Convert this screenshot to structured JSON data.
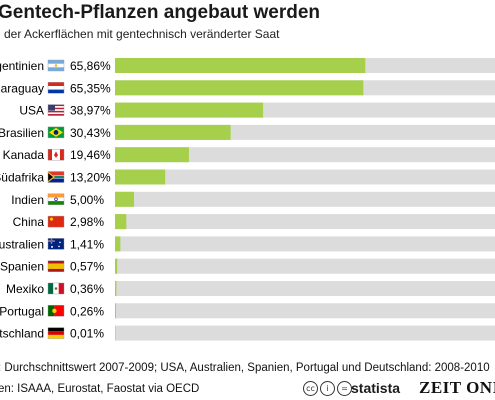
{
  "chart_data": {
    "type": "bar",
    "orientation": "horizontal",
    "title": "Gentech-Pflanzen angebaut werden",
    "subtitle": "l der Ackerflächen mit gentechnisch veränderter Saat",
    "categories": [
      "rgentinien",
      "Paraguay",
      "USA",
      "Brasilien",
      "Kanada",
      "Südafrika",
      "Indien",
      "China",
      "ustralien",
      "Spanien",
      "Mexiko",
      "Portugal",
      "tschland"
    ],
    "value_labels": [
      "65,86%",
      "65,35%",
      "38,97%",
      "30,43%",
      "19,46%",
      "13,20%",
      "5,00%",
      "2,98%",
      "1,41%",
      "0,57%",
      "0,36%",
      "0,26%",
      "0,01%"
    ],
    "values": [
      65.86,
      65.35,
      38.97,
      30.43,
      19.46,
      13.2,
      5.0,
      2.98,
      1.41,
      0.57,
      0.36,
      0.26,
      0.01
    ],
    "flags": [
      "flag-argentina",
      "flag-paraguay",
      "flag-usa",
      "flag-brazil",
      "flag-canada",
      "flag-south-africa",
      "flag-india",
      "flag-china",
      "flag-australia",
      "flag-spain",
      "flag-mexico",
      "flag-portugal",
      "flag-germany"
    ],
    "xlim": [
      0,
      100
    ],
    "grid": false,
    "legend": "none",
    "colors": {
      "bar": "#a6cf4b",
      "track": "#dcdcdc"
    }
  },
  "footer": {
    "note": ": Durchschnittswert 2007-2009; USA, Australien, Spanien, Portugal und Deutschland: 2008-2010",
    "source": "en: ISAAA, Eurostat, Faostat via OECD",
    "brand_statista": "statista",
    "brand_zeit": "ZEIT ONI"
  }
}
